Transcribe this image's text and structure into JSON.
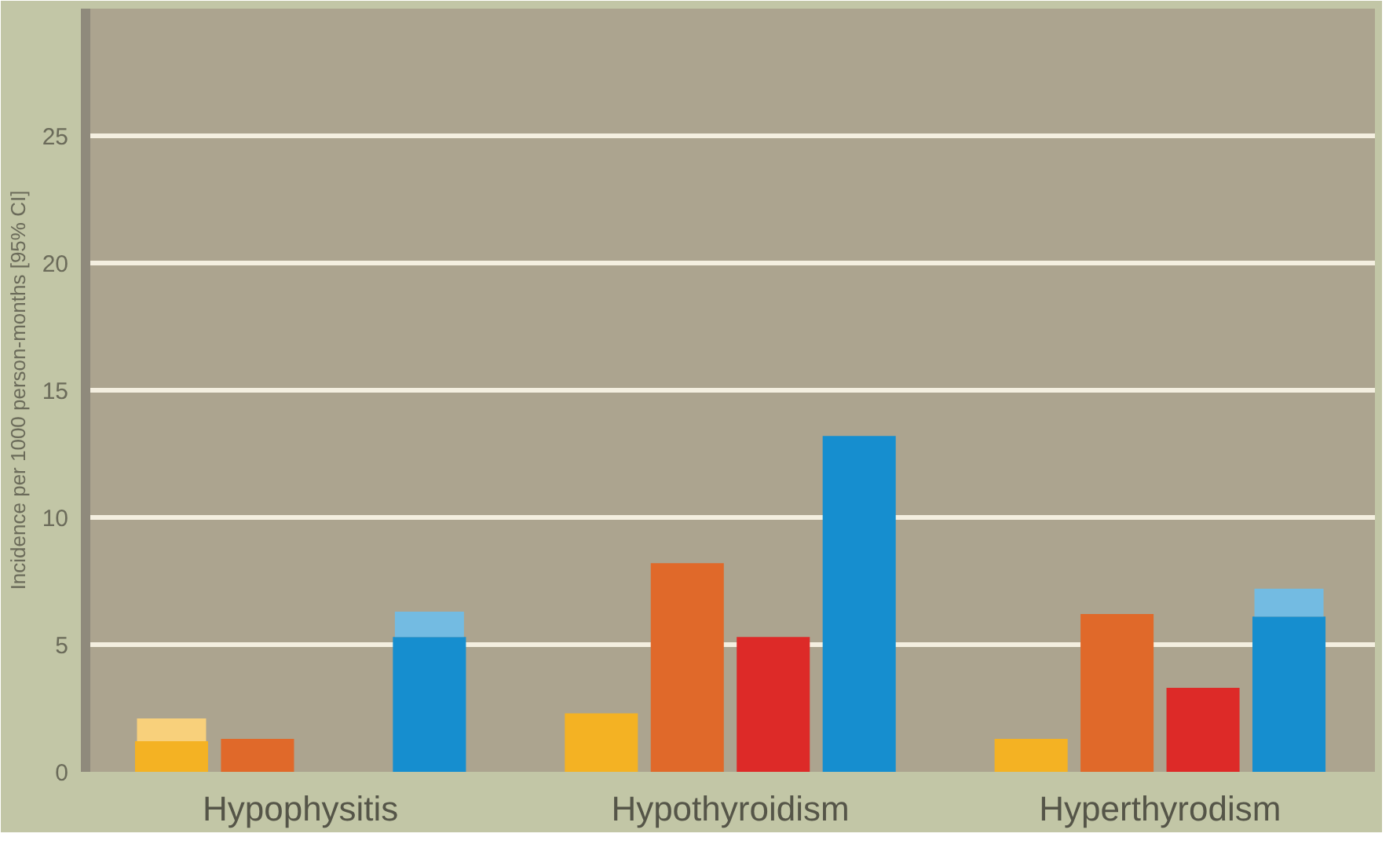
{
  "chart_data": {
    "type": "bar",
    "ylabel": "Incidence per 1000 person-months [95% CI]",
    "categories": [
      "Hypophysitis",
      "Hypothyroidism",
      "Hyperthyrodism"
    ],
    "series": [
      {
        "color": "#f4b223",
        "values": [
          1.2,
          2.3,
          1.3
        ],
        "errors": [
          [
            1.2,
            2.1
          ],
          null,
          null
        ]
      },
      {
        "color": "#e0692a",
        "values": [
          1.3,
          8.2,
          6.2
        ]
      },
      {
        "color": "#dd2a28",
        "values": [
          null,
          5.3,
          3.3
        ]
      },
      {
        "color": "#168ecf",
        "values": [
          5.3,
          13.2,
          6.1
        ],
        "errors": [
          [
            5.3,
            6.3
          ],
          null,
          [
            6.1,
            7.2
          ]
        ]
      }
    ],
    "ylim": [
      0,
      30
    ],
    "yticks": [
      0,
      5,
      10,
      15,
      20,
      25
    ],
    "grid": "y"
  }
}
